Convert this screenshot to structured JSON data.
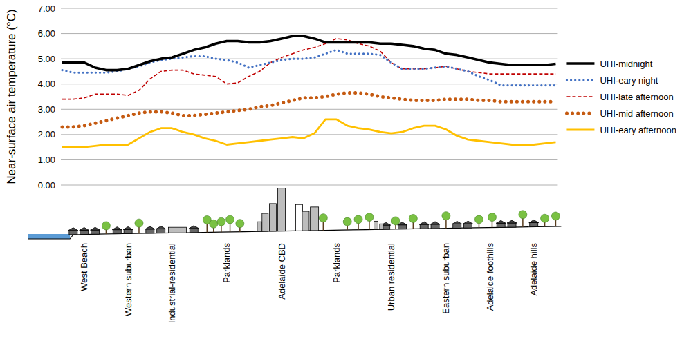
{
  "chart_data": {
    "type": "line",
    "y_label": "Near-surface air temperature (°C)",
    "categories": [
      null,
      null,
      "West Beach",
      null,
      null,
      null,
      "Western suburban",
      null,
      null,
      null,
      "Industrial-residential",
      null,
      null,
      null,
      null,
      "Parklands",
      null,
      null,
      null,
      null,
      "Adelaide CBD",
      null,
      null,
      null,
      null,
      "Parklands",
      null,
      null,
      null,
      null,
      "Urban residential",
      null,
      null,
      null,
      null,
      "Eastern suburban",
      null,
      null,
      null,
      "Adelaide foothills",
      null,
      null,
      null,
      "Adelaide hills",
      null,
      null
    ],
    "series": [
      {
        "name": "UHI-midnight",
        "color": "#000000",
        "line_style": "solid",
        "values": [
          4.85,
          4.85,
          4.85,
          4.65,
          4.55,
          4.55,
          4.6,
          4.75,
          4.9,
          5.0,
          5.05,
          5.2,
          5.35,
          5.45,
          5.6,
          5.7,
          5.7,
          5.65,
          5.65,
          5.7,
          5.8,
          5.9,
          5.9,
          5.8,
          5.65,
          5.65,
          5.65,
          5.65,
          5.65,
          5.6,
          5.6,
          5.55,
          5.5,
          5.4,
          5.35,
          5.2,
          5.15,
          5.05,
          4.95,
          4.85,
          4.8,
          4.75,
          4.75,
          4.75,
          4.75,
          4.8
        ]
      },
      {
        "name": "UHI-eary night",
        "color": "#4472c4",
        "line_style": "dotted",
        "values": [
          4.55,
          4.45,
          4.45,
          4.45,
          4.45,
          4.5,
          4.6,
          4.7,
          4.85,
          4.95,
          5.0,
          5.05,
          5.1,
          5.1,
          5.0,
          4.95,
          4.85,
          4.65,
          4.75,
          4.85,
          4.95,
          5.0,
          5.0,
          5.05,
          5.2,
          5.35,
          5.2,
          5.2,
          5.2,
          5.15,
          4.85,
          4.6,
          4.6,
          4.6,
          4.65,
          4.7,
          4.6,
          4.5,
          4.3,
          4.15,
          3.95,
          3.95,
          3.95,
          3.95,
          3.95,
          3.95
        ]
      },
      {
        "name": "UHI-late afternoon",
        "color": "#c00000",
        "line_style": "dashed",
        "values": [
          3.4,
          3.4,
          3.45,
          3.6,
          3.6,
          3.6,
          3.55,
          3.75,
          4.2,
          4.5,
          4.55,
          4.55,
          4.4,
          4.35,
          4.3,
          4.0,
          4.05,
          4.3,
          4.5,
          4.85,
          5.05,
          5.2,
          5.35,
          5.45,
          5.6,
          5.8,
          5.75,
          5.6,
          5.5,
          5.3,
          4.85,
          4.6,
          4.6,
          4.6,
          4.65,
          4.7,
          4.6,
          4.5,
          4.45,
          4.4,
          4.4,
          4.4,
          4.4,
          4.4,
          4.4,
          4.4
        ]
      },
      {
        "name": "UHI-mid afternoon",
        "color": "#c55a11",
        "line_style": "dotted",
        "values": [
          2.3,
          2.3,
          2.35,
          2.45,
          2.55,
          2.65,
          2.75,
          2.85,
          2.9,
          2.9,
          2.85,
          2.75,
          2.75,
          2.8,
          2.85,
          2.9,
          2.95,
          3.0,
          3.1,
          3.15,
          3.25,
          3.35,
          3.45,
          3.45,
          3.5,
          3.6,
          3.65,
          3.65,
          3.6,
          3.5,
          3.45,
          3.4,
          3.35,
          3.35,
          3.35,
          3.4,
          3.4,
          3.4,
          3.35,
          3.35,
          3.3,
          3.3,
          3.3,
          3.3,
          3.3,
          3.3
        ]
      },
      {
        "name": "UHI-eary afternoon",
        "color": "#ffc000",
        "line_style": "solid",
        "values": [
          1.5,
          1.5,
          1.5,
          1.55,
          1.6,
          1.6,
          1.6,
          1.85,
          2.1,
          2.25,
          2.25,
          2.1,
          2.0,
          1.85,
          1.75,
          1.6,
          1.65,
          1.7,
          1.75,
          1.8,
          1.85,
          1.9,
          1.85,
          2.05,
          2.6,
          2.6,
          2.35,
          2.25,
          2.2,
          2.1,
          2.05,
          2.1,
          2.25,
          2.35,
          2.35,
          2.2,
          1.95,
          1.8,
          1.75,
          1.7,
          1.65,
          1.6,
          1.6,
          1.6,
          1.65,
          1.7
        ]
      }
    ],
    "ylim": [
      0,
      7
    ],
    "yticks": [
      {
        "value": 0,
        "label": "0.00"
      },
      {
        "value": 1,
        "label": "1.00"
      },
      {
        "value": 2,
        "label": "2.00"
      },
      {
        "value": 3,
        "label": "3.00"
      },
      {
        "value": 4,
        "label": "4.00"
      },
      {
        "value": 5,
        "label": "5.00"
      },
      {
        "value": 6,
        "label": "6.00"
      },
      {
        "value": 7,
        "label": "7.00"
      }
    ],
    "grid": true,
    "legend": "right"
  }
}
